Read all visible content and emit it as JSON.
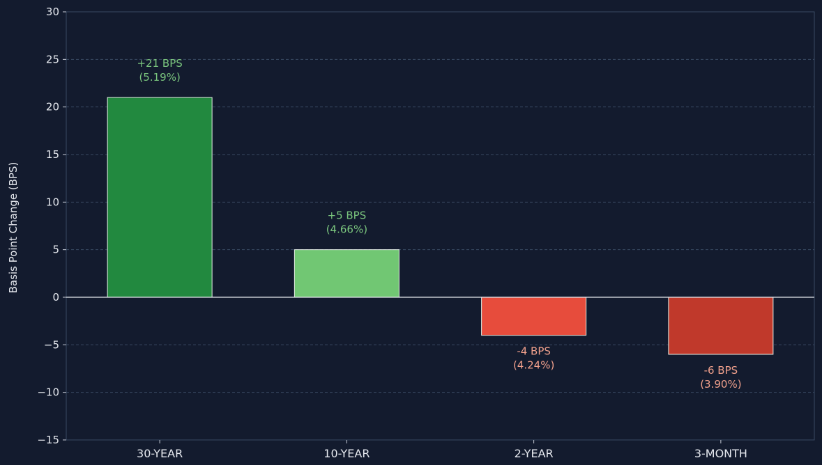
{
  "chart_data": {
    "type": "bar",
    "categories": [
      "30-YEAR",
      "10-YEAR",
      "2-YEAR",
      "3-MONTH"
    ],
    "values": [
      21,
      5,
      -4,
      -6
    ],
    "data_labels": [
      [
        "+21 BPS",
        "(5.19%)"
      ],
      [
        "+5 BPS",
        "(4.66%)"
      ],
      [
        "-4 BPS",
        "(4.24%)"
      ],
      [
        "-6 BPS",
        "(3.90%)"
      ]
    ],
    "bar_colors": [
      "#22893f",
      "#71c773",
      "#e74c3c",
      "#c0392b"
    ],
    "label_colors": [
      "#7bc67e",
      "#7bc67e",
      "#f0a08c",
      "#f0a08c"
    ],
    "title": "",
    "xlabel": "",
    "ylabel": "Basis Point Change (BPS)",
    "ylim": [
      -15,
      30
    ],
    "yticks": [
      -15,
      -10,
      -5,
      0,
      5,
      10,
      15,
      20,
      25,
      30
    ],
    "ytick_labels": [
      "−15",
      "−10",
      "−5",
      "0",
      "5",
      "10",
      "15",
      "20",
      "25",
      "30"
    ],
    "grid": true,
    "colors": {
      "background": "#131b2e",
      "grid": "#3a4a63",
      "zero_line": "#e6e9ef",
      "bar_edge": "#e6f0e6"
    }
  }
}
